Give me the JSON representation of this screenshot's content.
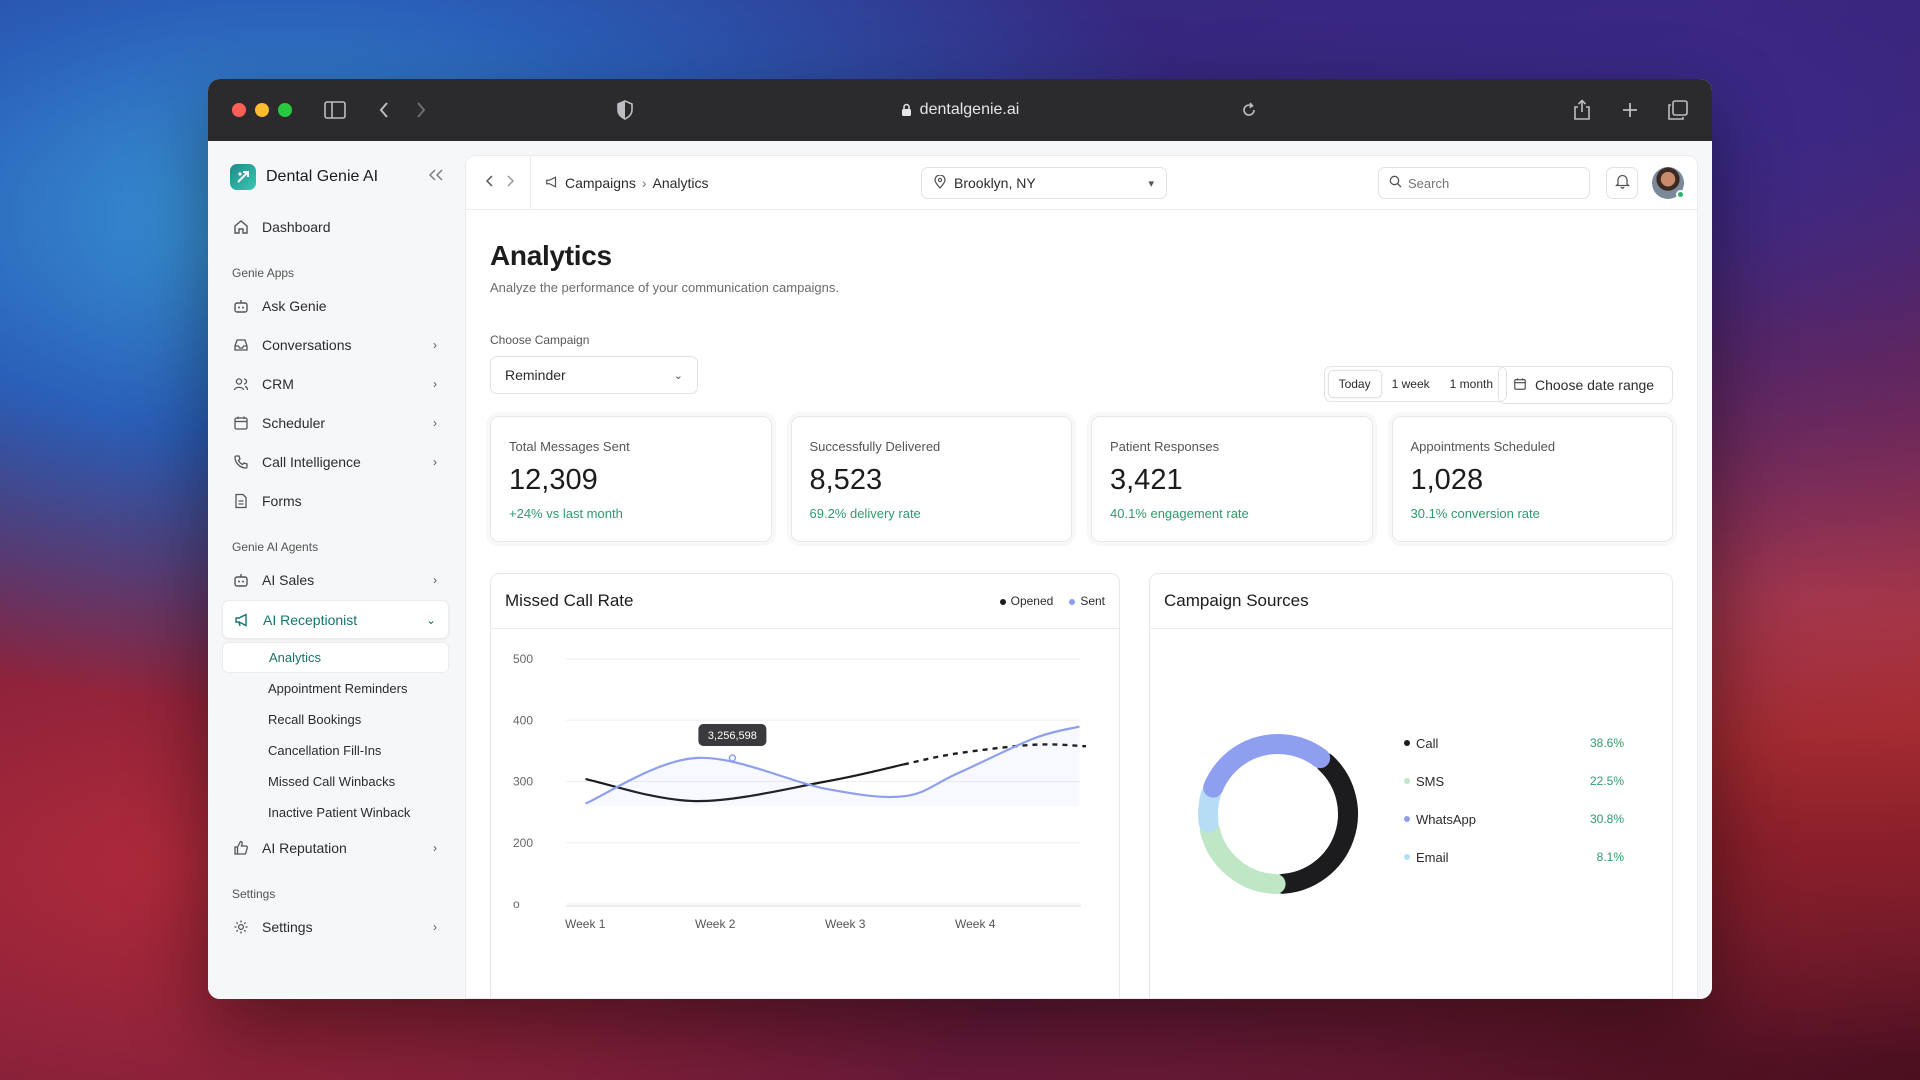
{
  "browser": {
    "url": "dentalgenie.ai"
  },
  "sidebar": {
    "brand": "Dental Genie AI",
    "dashboard": "Dashboard",
    "section_apps": "Genie Apps",
    "apps": [
      "Ask Genie",
      "Conversations",
      "CRM",
      "Scheduler",
      "Call Intelligence",
      "Forms"
    ],
    "section_agents": "Genie AI Agents",
    "agents_sales": "AI Sales",
    "agents_receptionist": "AI Receptionist",
    "receptionist_sub": [
      "Analytics",
      "Appointment Reminders",
      "Recall Bookings",
      "Cancellation Fill-Ins",
      "Missed Call Winbacks",
      "Inactive Patient Winback"
    ],
    "agents_reputation": "AI Reputation",
    "section_settings": "Settings",
    "settings": "Settings"
  },
  "topbar": {
    "crumb_parent": "Campaigns",
    "crumb_current": "Analytics",
    "location": "Brooklyn, NY",
    "search_placeholder": "Search"
  },
  "page": {
    "title": "Analytics",
    "subtitle": "Analyze the performance of your communication campaigns.",
    "choose_label": "Choose Campaign",
    "campaign": "Reminder",
    "periods": [
      "Today",
      "1 week",
      "1 month"
    ],
    "active_period": "Today",
    "date_range": "Choose date range"
  },
  "stats": [
    {
      "label": "Total Messages Sent",
      "value": "12,309",
      "sub": "+24% vs last month"
    },
    {
      "label": "Successfully Delivered",
      "value": "8,523",
      "sub": "69.2% delivery rate"
    },
    {
      "label": "Patient Responses",
      "value": "3,421",
      "sub": "40.1% engagement rate"
    },
    {
      "label": "Appointments Scheduled",
      "value": "1,028",
      "sub": "30.1% conversion rate"
    }
  ],
  "colors": {
    "accent": "#16736f",
    "positive": "#2f9a6b",
    "opened": "#1c1c1e",
    "sent": "#8e9ff0"
  },
  "chart_data": [
    {
      "type": "line",
      "title": "Missed Call Rate",
      "x": [
        "Week 1",
        "Week 2",
        "Week 3",
        "Week 4"
      ],
      "yticks": [
        "500",
        "400",
        "300",
        "200",
        "o"
      ],
      "ylim": [
        0,
        500
      ],
      "legend": [
        "Opened",
        "Sent"
      ],
      "series": [
        {
          "name": "Opened",
          "points": [
            [
              0.15,
              255
            ],
            [
              1,
              210
            ],
            [
              2,
              250
            ],
            [
              2.6,
              285
            ],
            [
              3,
              307
            ],
            [
              3.6,
              325
            ],
            [
              4.0,
              322
            ]
          ]
        },
        {
          "name": "Sent",
          "points": [
            [
              0.15,
              205
            ],
            [
              1,
              298
            ],
            [
              2,
              235
            ],
            [
              2.6,
              220
            ],
            [
              3,
              265
            ],
            [
              3.6,
              338
            ],
            [
              3.95,
              362
            ]
          ]
        }
      ],
      "tooltip": "3,256,598",
      "tooltip_x": 1.28
    },
    {
      "type": "pie",
      "title": "Campaign Sources",
      "slices": [
        {
          "label": "Call",
          "value": 38.6,
          "pct": "38.6%",
          "color": "#1c1c1e"
        },
        {
          "label": "SMS",
          "value": 22.5,
          "pct": "22.5%",
          "color": "#bfe6c5"
        },
        {
          "label": "WhatsApp",
          "value": 30.8,
          "pct": "30.8%",
          "color": "#8e9ff0"
        },
        {
          "label": "Email",
          "value": 8.1,
          "pct": "8.1%",
          "color": "#b7dcf5"
        }
      ]
    }
  ]
}
